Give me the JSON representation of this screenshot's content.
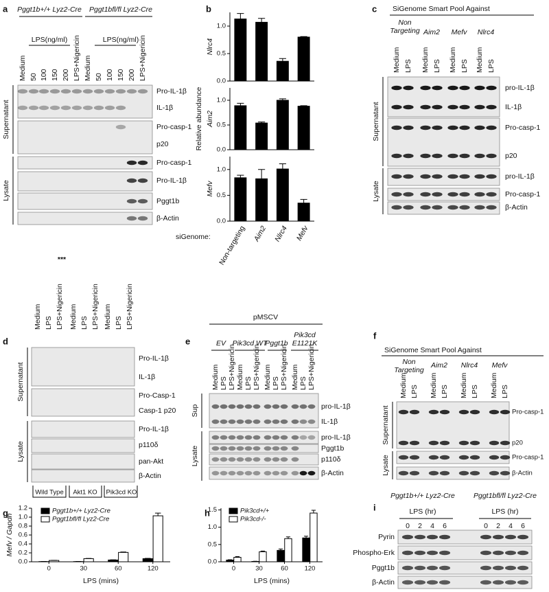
{
  "panels": {
    "a": {
      "letter": "a",
      "groups": [
        [
          "Pggt1b+/+ Lyz2-Cre"
        ],
        [
          "Pggt1bfl/fl Lyz2-Cre"
        ]
      ],
      "group_sub": [
        "LPS(ng/ml)",
        "LPS(ng/ml)"
      ],
      "lanes": [
        "Medium",
        "50",
        "100",
        "150",
        "200",
        "LPS+Nigericin",
        "Medium",
        "50",
        "100",
        "150",
        "200",
        "LPS+Nigericin"
      ],
      "rows": [
        "Pro-IL-1β",
        "IL-1β",
        "Pro-casp-1",
        "p20",
        "Pro-casp-1",
        "Pro-IL-1β",
        "Pggt1b",
        "β-Actin"
      ],
      "sections": [
        "Supernatant",
        "Lysate"
      ]
    },
    "c": {
      "letter": "c",
      "title": "SiGenome Smart Pool Against",
      "groups": [
        [
          "Non",
          "Targeting"
        ],
        [
          "Aim2"
        ],
        [
          "Mefv"
        ],
        [
          "Nlrc4"
        ]
      ],
      "lanes": [
        "Medium",
        "LPS",
        "Medium",
        "LPS",
        "Medium",
        "LPS",
        "Medium",
        "LPS"
      ],
      "rows": [
        "pro-IL-1β",
        "IL-1β",
        "Pro-casp-1",
        "p20",
        "pro-IL-1β",
        "Pro-casp-1",
        "β-Actin"
      ],
      "sections": [
        "Supernatant",
        "Lysate"
      ]
    },
    "d": {
      "letter": "d",
      "annotation": "***",
      "lanes": [
        "Medium",
        "LPS",
        "LPS+Nigericin",
        "Medium",
        "LPS",
        "LPS+Nigericin",
        "Medium",
        "LPS",
        "LPS+Nigericin"
      ],
      "rows": [
        "Pro-IL-1β",
        "IL-1β",
        "Pro-Casp-1",
        "Casp-1 p20",
        "Pro-IL-1β",
        "p110δ",
        "pan-Akt",
        "β-Actin"
      ],
      "sections": [
        "Supernatant",
        "Lysate"
      ],
      "bottom_groups": [
        "Wild Type",
        "Akt1 KO",
        "Pik3cd KO"
      ]
    },
    "e": {
      "letter": "e",
      "title": "pMSCV",
      "groups": [
        [
          "EV"
        ],
        [
          "Pik3cd WT"
        ],
        [
          "Pggt1b"
        ],
        [
          "Pik3cd",
          "E1121K"
        ]
      ],
      "lanes": [
        "Medium",
        "LPS",
        "LPS+Nigericin",
        "Medium",
        "LPS",
        "LPS+Nigericin",
        "Medium",
        "LPS",
        "LPS+Nigericin",
        "Medium",
        "LPS",
        "LPS+Nigericin"
      ],
      "rows": [
        "pro-IL-1β",
        "IL-1β",
        "pro-IL-1β",
        "Pggt1b",
        "p110δ",
        "β-Actin"
      ],
      "sections": [
        "Sup",
        "Lysate"
      ]
    },
    "f": {
      "letter": "f",
      "title": "SiGenome Smart Pool Against",
      "groups": [
        [
          "Non",
          "Targeting"
        ],
        [
          "Aim2"
        ],
        [
          "Nlrc4"
        ],
        [
          "Mefv"
        ]
      ],
      "lanes": [
        "Medium",
        "LPS",
        "Medium",
        "LPS",
        "Medium",
        "LPS",
        "Medium",
        "LPS"
      ],
      "rows": [
        "Pro-casp-1",
        "p20",
        "Pro-casp-1",
        "β-Actin"
      ],
      "sections": [
        "Supernatant",
        "Lysate"
      ]
    },
    "i": {
      "letter": "i",
      "groups": [
        [
          "Pggt1b+/+ Lyz2-Cre"
        ],
        [
          "Pggt1bfl/fl Lyz2-Cre"
        ]
      ],
      "group_sub": [
        "LPS (hr)",
        "LPS (hr)"
      ],
      "lanes": [
        "0",
        "2",
        "4",
        "6",
        "0",
        "2",
        "4",
        "6"
      ],
      "rows": [
        "Pyrin",
        "Phospho-Erk",
        "Pggt1b",
        "β-Actin"
      ]
    }
  },
  "chart_data": [
    {
      "type": "bar",
      "panel": "b",
      "ylabel": "Nlrc4",
      "values": [
        1.13,
        1.07,
        0.36,
        0.8
      ],
      "errors": [
        0.1,
        0.07,
        0.05,
        0.01
      ],
      "color": "#000000",
      "ylim": [
        0,
        1.25
      ],
      "yticks": [
        {
          "value": 0,
          "label": "0.0"
        },
        0.5,
        {
          "value": 1,
          "label": "1.0"
        }
      ]
    },
    {
      "type": "bar",
      "ylabel": "Aim2",
      "group_label": "Relative abundance",
      "values": [
        0.89,
        0.54,
        1.0,
        0.88
      ],
      "errors": [
        0.05,
        0.02,
        0.03,
        0.01
      ],
      "color": "#000000",
      "ylim": [
        0,
        1.25
      ],
      "yticks": [
        {
          "value": 0,
          "label": "0.0"
        },
        0.5,
        {
          "value": 1,
          "label": "1.0"
        }
      ]
    },
    {
      "type": "bar",
      "ylabel": "Mefv",
      "xlabel": "siGenome:",
      "categories": [
        "Non-targeting",
        "Aim2",
        "Nlrc4",
        "Mefv"
      ],
      "values": [
        0.84,
        0.82,
        1.01,
        0.35
      ],
      "errors": [
        0.05,
        0.18,
        0.1,
        0.07
      ],
      "color": "#000000",
      "ylim": [
        0,
        1.25
      ],
      "yticks": [
        {
          "value": 0,
          "label": "0.0"
        },
        0.5,
        {
          "value": 1,
          "label": "1.0"
        }
      ]
    },
    {
      "type": "bar",
      "panel": "g",
      "ylabel": "Mefv / Gapdh",
      "xlabel": "LPS (mins)",
      "categories": [
        0,
        30,
        60,
        120
      ],
      "series": [
        {
          "name": "Pggt1b+/+ Lyz2-Cre",
          "color": "#000000",
          "values": [
            0.005,
            0.005,
            0.04,
            0.07
          ],
          "errors": [
            0.002,
            0.002,
            0.005,
            0.007
          ]
        },
        {
          "name": "Pggt1bfl/fl Lyz2-Cre",
          "color": "#ffffff",
          "values": [
            0.03,
            0.07,
            0.21,
            1.03
          ],
          "errors": [
            0.003,
            0.005,
            0.01,
            0.06
          ]
        }
      ],
      "ylim": [
        0,
        1.2
      ],
      "yticks": [
        {
          "value": 0,
          "label": "0.0"
        },
        0.2,
        0.4,
        0.6,
        0.8,
        {
          "value": 1,
          "label": "1.0"
        },
        1.2
      ],
      "legend": "upper left"
    },
    {
      "type": "bar",
      "panel": "h",
      "xlabel": "LPS (mins)",
      "categories": [
        0,
        30,
        60,
        120
      ],
      "series": [
        {
          "name": "Pik3cd+/+",
          "color": "#000000",
          "values": [
            0.05,
            0.01,
            0.33,
            0.69
          ],
          "errors": [
            0.01,
            0.005,
            0.04,
            0.05
          ]
        },
        {
          "name": "Pik3cd-/-",
          "color": "#ffffff",
          "values": [
            0.13,
            0.29,
            0.67,
            1.41
          ],
          "errors": [
            0.02,
            0.02,
            0.05,
            0.08
          ]
        }
      ],
      "ylim": [
        0,
        1.55
      ],
      "yticks": [
        {
          "value": 0,
          "label": "0.0"
        },
        0.5,
        {
          "value": 1,
          "label": "1.0"
        },
        1.5
      ],
      "legend": "upper left"
    }
  ]
}
